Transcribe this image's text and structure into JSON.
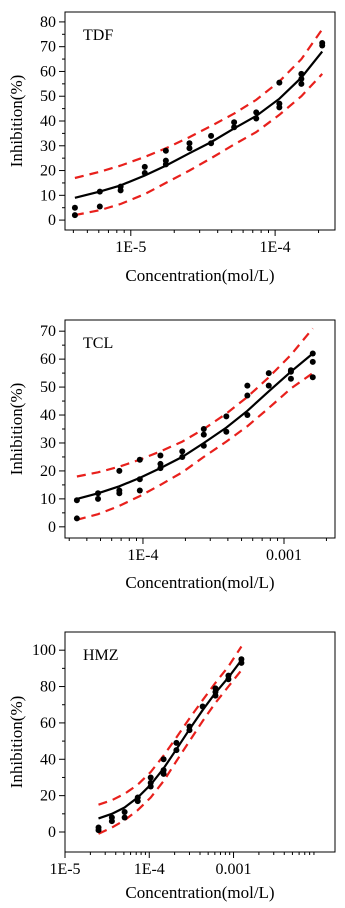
{
  "chart_data": [
    {
      "type": "scatter",
      "panel_label": "TDF",
      "xlabel": "Concentration(mol/L)",
      "ylabel": "Inhibition(%)",
      "x_scale": "log",
      "xlim": [
        3.5e-06,
        0.00026
      ],
      "ylim": [
        -4,
        84
      ],
      "x_ticks": [
        1e-05,
        0.0001
      ],
      "x_tick_labels": [
        "1E-5",
        "1E-4"
      ],
      "y_ticks": [
        0,
        10,
        20,
        30,
        40,
        50,
        60,
        70,
        80
      ],
      "y_tick_labels": [
        "0",
        "10",
        "20",
        "30",
        "40",
        "50",
        "60",
        "70",
        "80"
      ],
      "points": [
        {
          "x": 4.1e-06,
          "y": 2
        },
        {
          "x": 4.1e-06,
          "y": 5
        },
        {
          "x": 6.1e-06,
          "y": 5.5
        },
        {
          "x": 6.1e-06,
          "y": 11.5
        },
        {
          "x": 8.5e-06,
          "y": 12
        },
        {
          "x": 8.5e-06,
          "y": 13.5
        },
        {
          "x": 1.25e-05,
          "y": 19
        },
        {
          "x": 1.25e-05,
          "y": 21.5
        },
        {
          "x": 1.75e-05,
          "y": 22.5
        },
        {
          "x": 1.75e-05,
          "y": 24
        },
        {
          "x": 1.75e-05,
          "y": 28
        },
        {
          "x": 2.55e-05,
          "y": 29
        },
        {
          "x": 2.55e-05,
          "y": 31
        },
        {
          "x": 3.6e-05,
          "y": 31
        },
        {
          "x": 3.6e-05,
          "y": 34
        },
        {
          "x": 5.2e-05,
          "y": 37.5
        },
        {
          "x": 5.2e-05,
          "y": 39.5
        },
        {
          "x": 7.4e-05,
          "y": 41
        },
        {
          "x": 7.4e-05,
          "y": 43.5
        },
        {
          "x": 0.000107,
          "y": 45.5
        },
        {
          "x": 0.000107,
          "y": 47
        },
        {
          "x": 0.000107,
          "y": 55.5
        },
        {
          "x": 0.000152,
          "y": 55
        },
        {
          "x": 0.000152,
          "y": 57
        },
        {
          "x": 0.000152,
          "y": 59
        },
        {
          "x": 0.000212,
          "y": 70.5
        },
        {
          "x": 0.000212,
          "y": 71.5
        }
      ],
      "fit_line": {
        "x": [
          4.1e-06,
          6.1e-06,
          8.5e-06,
          1.25e-05,
          1.75e-05,
          2.55e-05,
          3.6e-05,
          5.2e-05,
          7.4e-05,
          0.000107,
          0.000152,
          0.000212
        ],
        "y": [
          9,
          11.5,
          14,
          18,
          22,
          27,
          31.5,
          37,
          42,
          49,
          57.5,
          68
        ]
      },
      "upper_band": {
        "x": [
          4.1e-06,
          6.1e-06,
          8.5e-06,
          1.25e-05,
          1.75e-05,
          2.55e-05,
          3.6e-05,
          5.2e-05,
          7.4e-05,
          0.000107,
          0.000152,
          0.000212
        ],
        "y": [
          17,
          19.5,
          22,
          25.5,
          29,
          33.5,
          38,
          43,
          48.5,
          56,
          65,
          77
        ]
      },
      "lower_band": {
        "x": [
          4.1e-06,
          6.1e-06,
          8.5e-06,
          1.25e-05,
          1.75e-05,
          2.55e-05,
          3.6e-05,
          5.2e-05,
          7.4e-05,
          0.000107,
          0.000152,
          0.000212
        ],
        "y": [
          2,
          4,
          6.5,
          10.5,
          15,
          20,
          25,
          30.5,
          35.5,
          42.5,
          50,
          59
        ]
      },
      "colors": {
        "points": "#000000",
        "fit": "#000000",
        "band": "#e8201c"
      }
    },
    {
      "type": "scatter",
      "panel_label": "TCL",
      "xlabel": "Concentration(mol/L)",
      "ylabel": "Inhibition(%)",
      "x_scale": "log",
      "xlim": [
        2.8e-05,
        0.0023
      ],
      "ylim": [
        -4,
        74
      ],
      "x_ticks": [
        0.0001,
        0.001
      ],
      "x_tick_labels": [
        "1E-4",
        "0.001"
      ],
      "y_ticks": [
        0,
        10,
        20,
        30,
        40,
        50,
        60,
        70
      ],
      "y_tick_labels": [
        "0",
        "10",
        "20",
        "30",
        "40",
        "50",
        "60",
        "70"
      ],
      "points": [
        {
          "x": 3.4e-05,
          "y": 3
        },
        {
          "x": 3.4e-05,
          "y": 9.5
        },
        {
          "x": 4.8e-05,
          "y": 10
        },
        {
          "x": 4.8e-05,
          "y": 12
        },
        {
          "x": 6.8e-05,
          "y": 12
        },
        {
          "x": 6.8e-05,
          "y": 13
        },
        {
          "x": 6.8e-05,
          "y": 20
        },
        {
          "x": 9.5e-05,
          "y": 13
        },
        {
          "x": 9.5e-05,
          "y": 17
        },
        {
          "x": 9.5e-05,
          "y": 24
        },
        {
          "x": 0.000133,
          "y": 21
        },
        {
          "x": 0.000133,
          "y": 22.5
        },
        {
          "x": 0.000133,
          "y": 25.5
        },
        {
          "x": 0.00019,
          "y": 25
        },
        {
          "x": 0.00019,
          "y": 27
        },
        {
          "x": 0.00027,
          "y": 29
        },
        {
          "x": 0.00027,
          "y": 33
        },
        {
          "x": 0.00027,
          "y": 35
        },
        {
          "x": 0.00039,
          "y": 34
        },
        {
          "x": 0.00039,
          "y": 39.5
        },
        {
          "x": 0.00055,
          "y": 40
        },
        {
          "x": 0.00055,
          "y": 47
        },
        {
          "x": 0.00055,
          "y": 50.5
        },
        {
          "x": 0.00078,
          "y": 50.5
        },
        {
          "x": 0.00078,
          "y": 55
        },
        {
          "x": 0.00112,
          "y": 53
        },
        {
          "x": 0.00112,
          "y": 55.5
        },
        {
          "x": 0.00112,
          "y": 56
        },
        {
          "x": 0.0016,
          "y": 53.5
        },
        {
          "x": 0.0016,
          "y": 59
        },
        {
          "x": 0.0016,
          "y": 62
        }
      ],
      "fit_line": {
        "x": [
          3.4e-05,
          4.8e-05,
          6.8e-05,
          9.5e-05,
          0.000133,
          0.00019,
          0.00027,
          0.00039,
          0.00055,
          0.00078,
          0.00112,
          0.0016
        ],
        "y": [
          10,
          12,
          14.5,
          17.5,
          21,
          25,
          30,
          35.5,
          41.5,
          48.5,
          55.5,
          62
        ]
      },
      "upper_band": {
        "x": [
          3.4e-05,
          4.8e-05,
          6.8e-05,
          9.5e-05,
          0.000133,
          0.00019,
          0.00027,
          0.00039,
          0.00055,
          0.00078,
          0.00112,
          0.0016
        ],
        "y": [
          18,
          19.5,
          21.5,
          24,
          27,
          30.5,
          35,
          40.5,
          46.5,
          53.5,
          61.5,
          71
        ]
      },
      "lower_band": {
        "x": [
          3.4e-05,
          4.8e-05,
          6.8e-05,
          9.5e-05,
          0.000133,
          0.00019,
          0.00027,
          0.00039,
          0.00055,
          0.00078,
          0.00112,
          0.0016
        ],
        "y": [
          2.5,
          4.5,
          7.5,
          11,
          15,
          19.5,
          25,
          30.5,
          36,
          42.5,
          49.5,
          55
        ]
      },
      "colors": {
        "points": "#000000",
        "fit": "#000000",
        "band": "#e8201c"
      }
    },
    {
      "type": "scatter",
      "panel_label": "HMZ",
      "xlabel": "Concentration(mol/L)",
      "ylabel": "Inhibition(%)",
      "x_scale": "log",
      "xlim": [
        1e-05,
        0.016
      ],
      "ylim": [
        -11,
        110
      ],
      "x_ticks": [
        1e-05,
        0.0001,
        0.001
      ],
      "x_tick_labels": [
        "1E-5",
        "1E-4",
        "0.001"
      ],
      "y_ticks": [
        0,
        20,
        40,
        60,
        80,
        100
      ],
      "y_tick_labels": [
        "0",
        "20",
        "40",
        "60",
        "80",
        "100"
      ],
      "points": [
        {
          "x": 2.5e-05,
          "y": 1
        },
        {
          "x": 2.5e-05,
          "y": 2.5
        },
        {
          "x": 3.6e-05,
          "y": 6
        },
        {
          "x": 3.6e-05,
          "y": 8
        },
        {
          "x": 5.1e-05,
          "y": 8
        },
        {
          "x": 5.1e-05,
          "y": 11
        },
        {
          "x": 7.3e-05,
          "y": 17
        },
        {
          "x": 7.3e-05,
          "y": 19
        },
        {
          "x": 0.000104,
          "y": 25
        },
        {
          "x": 0.000104,
          "y": 27
        },
        {
          "x": 0.000104,
          "y": 30
        },
        {
          "x": 0.000148,
          "y": 32
        },
        {
          "x": 0.000148,
          "y": 34
        },
        {
          "x": 0.000148,
          "y": 40
        },
        {
          "x": 0.00021,
          "y": 45
        },
        {
          "x": 0.00021,
          "y": 49
        },
        {
          "x": 0.0003,
          "y": 56
        },
        {
          "x": 0.0003,
          "y": 58
        },
        {
          "x": 0.00043,
          "y": 69
        },
        {
          "x": 0.00061,
          "y": 75
        },
        {
          "x": 0.00061,
          "y": 77
        },
        {
          "x": 0.00061,
          "y": 79
        },
        {
          "x": 0.00087,
          "y": 84
        },
        {
          "x": 0.00087,
          "y": 86
        },
        {
          "x": 0.00124,
          "y": 93
        },
        {
          "x": 0.00124,
          "y": 95
        }
      ],
      "fit_line": {
        "x": [
          2.5e-05,
          3.6e-05,
          5.1e-05,
          7.3e-05,
          0.000104,
          0.000148,
          0.00021,
          0.0003,
          0.00043,
          0.00061,
          0.00087,
          0.00124
        ],
        "y": [
          7.5,
          10,
          13.5,
          19,
          26,
          35,
          45.5,
          56.5,
          67,
          76.5,
          85,
          94.5
        ]
      },
      "upper_band": {
        "x": [
          2.5e-05,
          3.6e-05,
          5.1e-05,
          7.3e-05,
          0.000104,
          0.000148,
          0.00021,
          0.0003,
          0.00043,
          0.00061,
          0.00087,
          0.00124
        ],
        "y": [
          15,
          17.5,
          21,
          26,
          33,
          42,
          52,
          62.5,
          72.5,
          82,
          91,
          102
        ]
      },
      "lower_band": {
        "x": [
          2.5e-05,
          3.6e-05,
          5.1e-05,
          7.3e-05,
          0.000104,
          0.000148,
          0.00021,
          0.0003,
          0.00043,
          0.00061,
          0.00087,
          0.00124
        ],
        "y": [
          -1,
          2.5,
          6.5,
          12,
          19,
          28,
          39,
          50,
          61,
          71,
          80,
          89
        ]
      },
      "colors": {
        "points": "#000000",
        "fit": "#000000",
        "band": "#e8201c"
      }
    }
  ]
}
